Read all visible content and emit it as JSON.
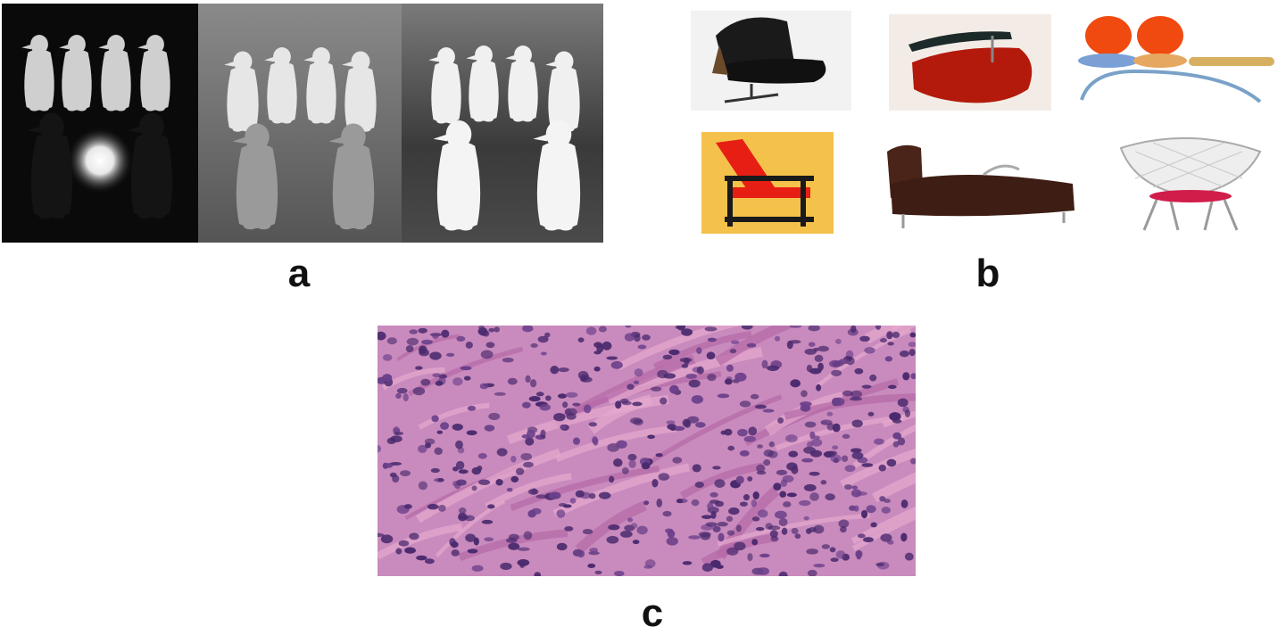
{
  "figure": {
    "panels": [
      {
        "id": "a",
        "label": "a",
        "image": "penguin-figurines-three-lighting-conditions"
      },
      {
        "id": "b",
        "label": "b",
        "image": "six-chairs-grid"
      },
      {
        "id": "c",
        "label": "c",
        "image": "histology-tissue-section"
      }
    ]
  },
  "colors": {
    "background": "#ffffff",
    "label": "#111111",
    "tissue_pink": "#d98fbf",
    "nuclei_purple": "#4a2a6e"
  }
}
